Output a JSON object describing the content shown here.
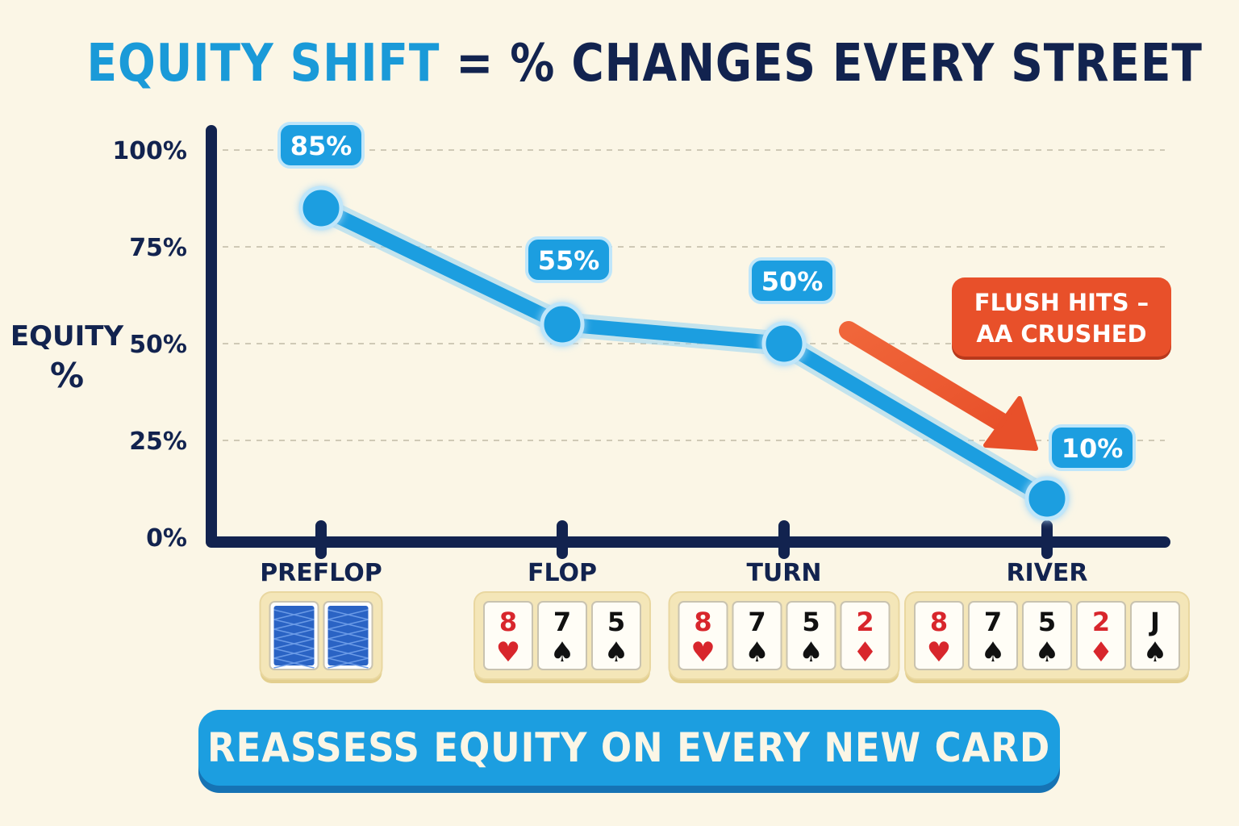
{
  "title": {
    "accent": "EQUITY SHIFT",
    "rest": " = % CHANGES EVERY STREET"
  },
  "chart_data": {
    "type": "line",
    "categories": [
      "PREFLOP",
      "FLOP",
      "TURN",
      "RIVER"
    ],
    "values": [
      85,
      55,
      50,
      10
    ],
    "data_labels": [
      "85%",
      "55%",
      "50%",
      "10%"
    ],
    "ylabel": "EQUITY %",
    "ylim": [
      0,
      100
    ],
    "yticks": [
      0,
      25,
      50,
      75,
      100
    ],
    "ytick_labels": [
      "0%",
      "25%",
      "50%",
      "75%",
      "100%"
    ],
    "grid": "dashed horizontal",
    "annotation": {
      "lines": [
        "FLUSH HITS –",
        "AA CRUSHED"
      ],
      "target": "RIVER"
    }
  },
  "boards": [
    {
      "street": "PREFLOP",
      "cards": [
        {
          "face_down": true
        },
        {
          "face_down": true
        }
      ]
    },
    {
      "street": "FLOP",
      "cards": [
        {
          "rank": "8",
          "suit": "♥",
          "color": "red"
        },
        {
          "rank": "7",
          "suit": "♠",
          "color": "black"
        },
        {
          "rank": "5",
          "suit": "♠",
          "color": "black"
        }
      ]
    },
    {
      "street": "TURN",
      "cards": [
        {
          "rank": "8",
          "suit": "♥",
          "color": "red"
        },
        {
          "rank": "7",
          "suit": "♠",
          "color": "black"
        },
        {
          "rank": "5",
          "suit": "♠",
          "color": "black"
        },
        {
          "rank": "2",
          "suit": "♦",
          "color": "red"
        }
      ]
    },
    {
      "street": "RIVER",
      "cards": [
        {
          "rank": "8",
          "suit": "♥",
          "color": "red"
        },
        {
          "rank": "7",
          "suit": "♠",
          "color": "black"
        },
        {
          "rank": "5",
          "suit": "♠",
          "color": "black"
        },
        {
          "rank": "2",
          "suit": "♦",
          "color": "red"
        },
        {
          "rank": "J",
          "suit": "♠",
          "color": "black"
        }
      ]
    }
  ],
  "footer": {
    "text": "REASSESS EQUITY ON EVERY NEW CARD"
  },
  "colors": {
    "background": "#fbf6e6",
    "navy": "#12234f",
    "blue": "#1c9ee0",
    "blue_dark": "#1673b4",
    "orange": "#e8502a",
    "red_suit": "#d8262c",
    "card_face": "#fffdf6",
    "card_tray": "#f4e6b8"
  }
}
